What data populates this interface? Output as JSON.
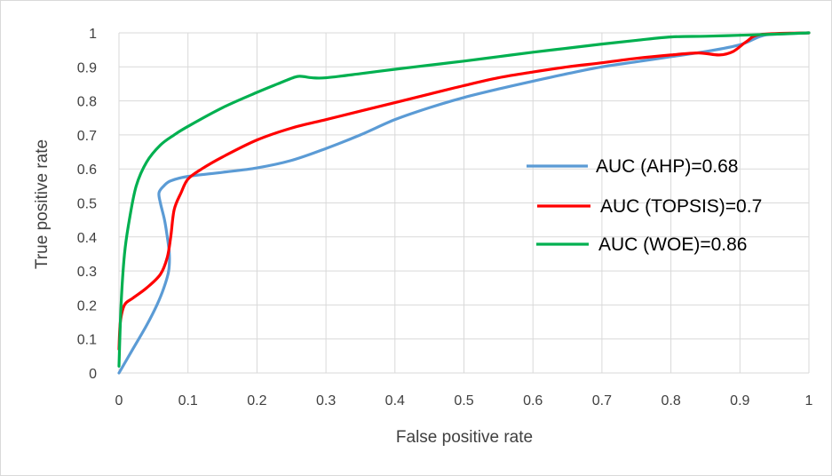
{
  "chart_data": {
    "type": "line",
    "xlabel": "False positive rate",
    "ylabel": "True positive rate",
    "xlim": [
      0,
      1
    ],
    "ylim": [
      0,
      1
    ],
    "x_ticks": [
      "0",
      "0.1",
      "0.2",
      "0.3",
      "0.4",
      "0.5",
      "0.6",
      "0.7",
      "0.8",
      "0.9",
      "1"
    ],
    "y_ticks": [
      "0",
      "0.1",
      "0.2",
      "0.3",
      "0.4",
      "0.5",
      "0.6",
      "0.7",
      "0.8",
      "0.9",
      "1"
    ],
    "grid": "vertical and horizontal",
    "legend_position": "right",
    "series": [
      {
        "name": "AUC (AHP)=0.68",
        "color": "#5b9bd5",
        "points": [
          [
            0,
            0
          ],
          [
            0.02,
            0.07
          ],
          [
            0.04,
            0.14
          ],
          [
            0.055,
            0.2
          ],
          [
            0.065,
            0.25
          ],
          [
            0.072,
            0.3
          ],
          [
            0.073,
            0.35
          ],
          [
            0.07,
            0.4
          ],
          [
            0.066,
            0.45
          ],
          [
            0.06,
            0.5
          ],
          [
            0.058,
            0.53
          ],
          [
            0.065,
            0.55
          ],
          [
            0.075,
            0.565
          ],
          [
            0.1,
            0.578
          ],
          [
            0.15,
            0.59
          ],
          [
            0.2,
            0.603
          ],
          [
            0.25,
            0.625
          ],
          [
            0.3,
            0.66
          ],
          [
            0.35,
            0.7
          ],
          [
            0.4,
            0.745
          ],
          [
            0.45,
            0.78
          ],
          [
            0.5,
            0.81
          ],
          [
            0.55,
            0.835
          ],
          [
            0.6,
            0.858
          ],
          [
            0.65,
            0.88
          ],
          [
            0.7,
            0.9
          ],
          [
            0.75,
            0.915
          ],
          [
            0.8,
            0.93
          ],
          [
            0.85,
            0.945
          ],
          [
            0.9,
            0.965
          ],
          [
            0.93,
            0.99
          ],
          [
            0.95,
            0.996
          ],
          [
            1,
            1
          ]
        ]
      },
      {
        "name": "AUC (TOPSIS)=0.7",
        "color": "#ff0000",
        "points": [
          [
            0,
            0.07
          ],
          [
            0.002,
            0.15
          ],
          [
            0.008,
            0.2
          ],
          [
            0.02,
            0.22
          ],
          [
            0.04,
            0.25
          ],
          [
            0.06,
            0.29
          ],
          [
            0.07,
            0.34
          ],
          [
            0.075,
            0.4
          ],
          [
            0.08,
            0.48
          ],
          [
            0.09,
            0.53
          ],
          [
            0.1,
            0.57
          ],
          [
            0.12,
            0.6
          ],
          [
            0.15,
            0.635
          ],
          [
            0.2,
            0.685
          ],
          [
            0.25,
            0.72
          ],
          [
            0.3,
            0.745
          ],
          [
            0.35,
            0.77
          ],
          [
            0.4,
            0.795
          ],
          [
            0.45,
            0.82
          ],
          [
            0.5,
            0.845
          ],
          [
            0.55,
            0.868
          ],
          [
            0.6,
            0.885
          ],
          [
            0.65,
            0.9
          ],
          [
            0.7,
            0.912
          ],
          [
            0.75,
            0.925
          ],
          [
            0.8,
            0.935
          ],
          [
            0.84,
            0.941
          ],
          [
            0.87,
            0.935
          ],
          [
            0.89,
            0.945
          ],
          [
            0.91,
            0.975
          ],
          [
            0.93,
            0.995
          ],
          [
            1,
            1
          ]
        ]
      },
      {
        "name": "AUC (WOE)=0.86",
        "color": "#00b050",
        "points": [
          [
            0,
            0.02
          ],
          [
            0.003,
            0.2
          ],
          [
            0.008,
            0.35
          ],
          [
            0.015,
            0.45
          ],
          [
            0.025,
            0.55
          ],
          [
            0.04,
            0.62
          ],
          [
            0.06,
            0.67
          ],
          [
            0.08,
            0.7
          ],
          [
            0.1,
            0.725
          ],
          [
            0.15,
            0.78
          ],
          [
            0.2,
            0.825
          ],
          [
            0.23,
            0.85
          ],
          [
            0.255,
            0.87
          ],
          [
            0.265,
            0.872
          ],
          [
            0.28,
            0.868
          ],
          [
            0.3,
            0.868
          ],
          [
            0.35,
            0.88
          ],
          [
            0.4,
            0.893
          ],
          [
            0.45,
            0.905
          ],
          [
            0.5,
            0.917
          ],
          [
            0.55,
            0.93
          ],
          [
            0.6,
            0.943
          ],
          [
            0.65,
            0.955
          ],
          [
            0.7,
            0.967
          ],
          [
            0.75,
            0.978
          ],
          [
            0.8,
            0.988
          ],
          [
            0.85,
            0.99
          ],
          [
            0.9,
            0.993
          ],
          [
            0.95,
            0.996
          ],
          [
            1,
            1
          ]
        ]
      }
    ]
  }
}
